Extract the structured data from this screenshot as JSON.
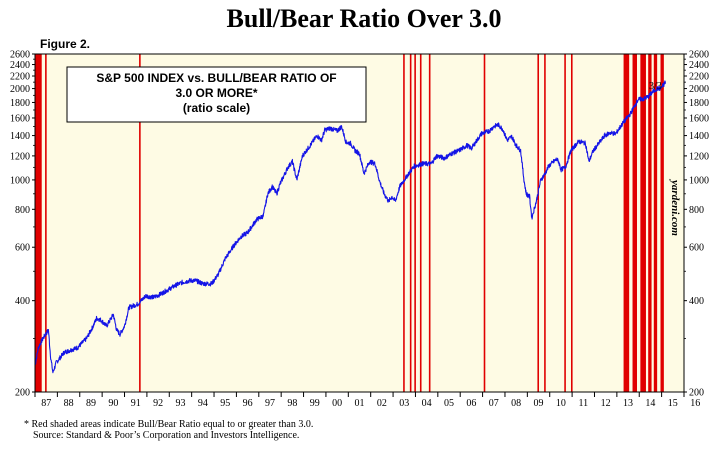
{
  "header": {
    "title": "Bull/Bear Ratio Over 3.0",
    "figure_label": "Figure 2."
  },
  "footnote": {
    "line1": "*   Red shaded areas indicate Bull/Bear Ratio equal to or greater than 3.0.",
    "line2": "Source: Standard & Poor’s Corporation and Investors Intelligence."
  },
  "colors": {
    "background": "#fefbe4",
    "series_line": "#1414e6",
    "shading": "#e00000"
  },
  "chart_data": {
    "type": "line",
    "inset_title": [
      "S&P 500 INDEX vs. BULL/BEAR RATIO OF",
      "3.0 OR MORE*",
      "(ratio scale)"
    ],
    "end_annotation": "3/3",
    "brand": "yardeni.com",
    "y_scale": "log",
    "ylim": [
      200,
      2600
    ],
    "xlim": [
      1987,
      2016
    ],
    "y_ticks": [
      200,
      400,
      600,
      800,
      1000,
      1200,
      1400,
      1600,
      1800,
      2000,
      2200,
      2400,
      2600
    ],
    "x_tick_labels": [
      "87",
      "88",
      "89",
      "90",
      "91",
      "92",
      "93",
      "94",
      "95",
      "96",
      "97",
      "98",
      "99",
      "00",
      "01",
      "02",
      "03",
      "04",
      "05",
      "06",
      "07",
      "08",
      "09",
      "10",
      "11",
      "12",
      "13",
      "14",
      "15",
      "16"
    ],
    "grid": false,
    "legend": "none",
    "series": [
      {
        "x": [
          1987.0,
          1987.15,
          1987.35,
          1987.6,
          1987.7,
          1987.8,
          1987.95,
          1988.3,
          1988.6,
          1988.9,
          1989.3,
          1989.6,
          1989.75,
          1989.95,
          1990.2,
          1990.5,
          1990.65,
          1990.8,
          1991.0,
          1991.2,
          1991.6,
          1991.95,
          1992.3,
          1992.6,
          1992.95,
          1993.3,
          1993.6,
          1993.95,
          1994.2,
          1994.5,
          1994.9,
          1995.2,
          1995.5,
          1995.9,
          1996.2,
          1996.5,
          1996.9,
          1997.2,
          1997.4,
          1997.6,
          1997.8,
          1997.95,
          1998.3,
          1998.5,
          1998.7,
          1998.95,
          1999.3,
          1999.6,
          1999.8,
          1999.95,
          2000.2,
          2000.5,
          2000.7,
          2000.9,
          2001.1,
          2001.3,
          2001.5,
          2001.7,
          2001.95,
          2002.2,
          2002.4,
          2002.6,
          2002.8,
          2002.95,
          2003.1,
          2003.3,
          2003.5,
          2003.7,
          2003.95,
          2004.3,
          2004.7,
          2004.95,
          2005.3,
          2005.6,
          2005.95,
          2006.3,
          2006.5,
          2006.95,
          2007.3,
          2007.5,
          2007.7,
          2007.9,
          2008.1,
          2008.3,
          2008.5,
          2008.7,
          2008.85,
          2008.95,
          2009.1,
          2009.2,
          2009.4,
          2009.6,
          2009.8,
          2009.95,
          2010.3,
          2010.4,
          2010.5,
          2010.7,
          2010.95,
          2011.3,
          2011.6,
          2011.75,
          2011.95,
          2012.3,
          2012.45,
          2012.7,
          2012.95,
          2013.3,
          2013.6,
          2013.95,
          2014.2,
          2014.4,
          2014.6,
          2014.8,
          2014.95,
          2015.1,
          2015.17
        ],
        "values": [
          245,
          280,
          300,
          320,
          260,
          232,
          250,
          270,
          275,
          280,
          300,
          330,
          350,
          345,
          330,
          360,
          320,
          310,
          330,
          380,
          390,
          415,
          410,
          420,
          435,
          450,
          460,
          466,
          465,
          455,
          455,
          490,
          550,
          610,
          650,
          670,
          740,
          760,
          900,
          950,
          900,
          970,
          1100,
          1150,
          1000,
          1200,
          1300,
          1400,
          1350,
          1460,
          1480,
          1450,
          1500,
          1330,
          1320,
          1250,
          1220,
          1050,
          1150,
          1130,
          990,
          900,
          850,
          880,
          850,
          950,
          1000,
          1050,
          1110,
          1130,
          1130,
          1200,
          1180,
          1220,
          1250,
          1300,
          1270,
          1420,
          1450,
          1500,
          1520,
          1470,
          1350,
          1390,
          1300,
          1250,
          1000,
          900,
          880,
          750,
          850,
          1000,
          1050,
          1110,
          1170,
          1150,
          1080,
          1100,
          1250,
          1340,
          1320,
          1150,
          1250,
          1350,
          1400,
          1430,
          1420,
          1550,
          1650,
          1840,
          1850,
          1880,
          1950,
          2000,
          2000,
          2060,
          2110
        ]
      }
    ],
    "shaded_periods": [
      [
        1987.0,
        1987.3
      ],
      [
        1987.45,
        1987.5
      ],
      [
        1991.65,
        1991.7
      ],
      [
        2003.45,
        2003.5
      ],
      [
        2003.75,
        2003.8
      ],
      [
        2003.95,
        2004.0
      ],
      [
        2004.2,
        2004.25
      ],
      [
        2004.6,
        2004.65
      ],
      [
        2007.05,
        2007.1
      ],
      [
        2009.45,
        2009.5
      ],
      [
        2009.75,
        2009.8
      ],
      [
        2010.65,
        2010.7
      ],
      [
        2010.95,
        2011.0
      ],
      [
        2013.3,
        2013.55
      ],
      [
        2013.7,
        2013.9
      ],
      [
        2014.05,
        2014.3
      ],
      [
        2014.4,
        2014.55
      ],
      [
        2014.65,
        2014.8
      ],
      [
        2014.95,
        2015.1
      ]
    ]
  }
}
